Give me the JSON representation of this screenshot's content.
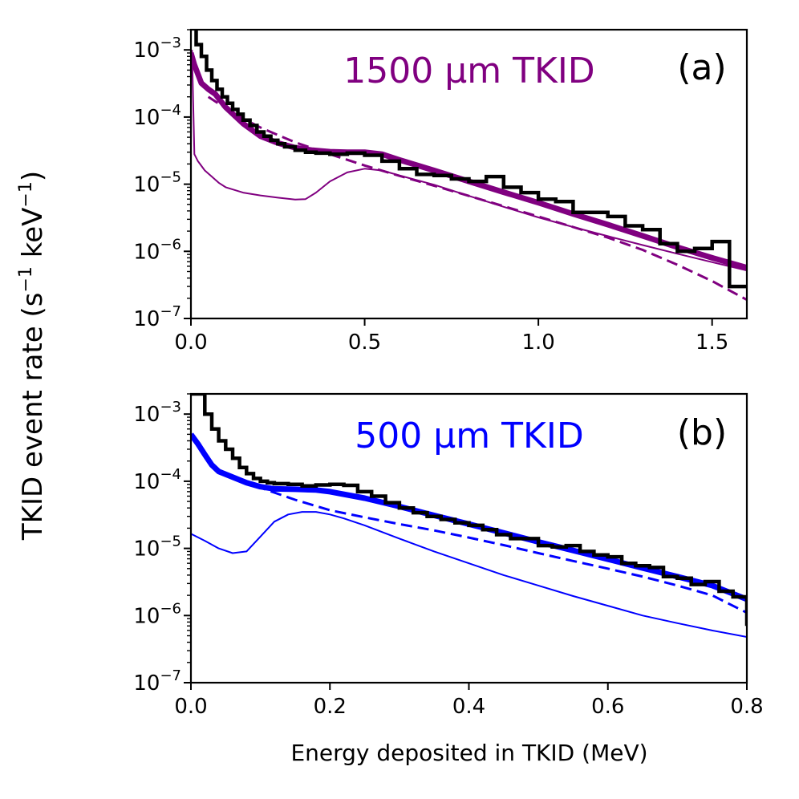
{
  "figure": {
    "ylabel_main": "TKID event rate (s",
    "ylabel_sup1": "−1",
    "ylabel_mid": " keV",
    "ylabel_sup2": "−1",
    "ylabel_end": ")",
    "xlabel": "Energy deposited in TKID (MeV)"
  },
  "chart_data": [
    {
      "type": "line",
      "panel_label": "(a)",
      "title": "1500 µm TKID",
      "title_color": "#800080",
      "line_color": "#800080",
      "xlabel": "",
      "ylabel": "TKID event rate (s⁻¹ keV⁻¹)",
      "xlim": [
        0,
        1.6
      ],
      "ylim": [
        1e-07,
        0.002
      ],
      "yscale": "log",
      "grid": false,
      "xticks": [
        0.0,
        0.5,
        1.0,
        1.5
      ],
      "xtick_labels": [
        "0.0",
        "0.5",
        "1.0",
        "1.5"
      ],
      "yticks": [
        {
          "value": 1e-07,
          "base": "10",
          "exp": "−7"
        },
        {
          "value": 1e-06,
          "base": "10",
          "exp": "−6"
        },
        {
          "value": 1e-05,
          "base": "10",
          "exp": "−5"
        },
        {
          "value": 0.0001,
          "base": "10",
          "exp": "−4"
        },
        {
          "value": 0.001,
          "base": "10",
          "exp": "−3"
        }
      ],
      "series": [
        {
          "style": "thick",
          "x": [
            0.0,
            0.01,
            0.03,
            0.05,
            0.07,
            0.1,
            0.15,
            0.2,
            0.25,
            0.3,
            0.35,
            0.4,
            0.45,
            0.5,
            0.55,
            0.6,
            0.7,
            0.8,
            0.9,
            1.0,
            1.1,
            1.2,
            1.3,
            1.4,
            1.5,
            1.6
          ],
          "y": [
            0.0009,
            0.0006,
            0.00032,
            0.00026,
            0.00022,
            0.00014,
            8e-05,
            5.2e-05,
            4.1e-05,
            3.5e-05,
            3.2e-05,
            3.05e-05,
            3e-05,
            3e-05,
            2.8e-05,
            2.3e-05,
            1.6e-05,
            1.1e-05,
            7.6e-06,
            5.3e-06,
            3.6e-06,
            2.5e-06,
            1.7e-06,
            1.15e-06,
            8e-07,
            5.7e-07
          ]
        },
        {
          "style": "dashed",
          "x": [
            0.05,
            0.1,
            0.15,
            0.2,
            0.25,
            0.3,
            0.4,
            0.5,
            0.6,
            0.7,
            0.8,
            0.9,
            1.0,
            1.1,
            1.2,
            1.3,
            1.4,
            1.5,
            1.6
          ],
          "y": [
            0.0002,
            0.000135,
            9.5e-05,
            7e-05,
            5.4e-05,
            4.2e-05,
            2.8e-05,
            1.9e-05,
            1.33e-05,
            9.5e-06,
            6.7e-06,
            4.7e-06,
            3.3e-06,
            2.3e-06,
            1.6e-06,
            1.05e-06,
            6.3e-07,
            3.6e-07,
            1.9e-07
          ]
        },
        {
          "style": "thin",
          "x": [
            0.003,
            0.01,
            0.02,
            0.04,
            0.06,
            0.08,
            0.1,
            0.15,
            0.2,
            0.25,
            0.3,
            0.33,
            0.36,
            0.4,
            0.45,
            0.5,
            0.55,
            0.6,
            0.7,
            0.8,
            0.9,
            1.0,
            1.1,
            1.2,
            1.3,
            1.4,
            1.5,
            1.6
          ],
          "y": [
            0.001,
            2.8e-05,
            2.2e-05,
            1.6e-05,
            1.3e-05,
            1.05e-05,
            9e-06,
            7.5e-06,
            6.8e-06,
            6.3e-06,
            5.9e-06,
            6e-06,
            7.5e-06,
            1.1e-05,
            1.5e-05,
            1.7e-05,
            1.6e-05,
            1.35e-05,
            9.8e-06,
            6.7e-06,
            4.6e-06,
            3.2e-06,
            2.3e-06,
            1.68e-06,
            1.24e-06,
            9.2e-07,
            6.9e-07,
            5.2e-07
          ]
        },
        {
          "style": "step",
          "x": [
            0.0,
            0.015,
            0.03,
            0.045,
            0.06,
            0.075,
            0.09,
            0.105,
            0.12,
            0.135,
            0.15,
            0.17,
            0.19,
            0.21,
            0.23,
            0.25,
            0.27,
            0.3,
            0.33,
            0.36,
            0.4,
            0.45,
            0.5,
            0.55,
            0.6,
            0.65,
            0.7,
            0.75,
            0.8,
            0.85,
            0.9,
            0.95,
            1.0,
            1.05,
            1.1,
            1.15,
            1.2,
            1.25,
            1.3,
            1.35,
            1.4,
            1.45,
            1.5,
            1.55,
            1.6
          ],
          "y": [
            0.0021,
            0.0012,
            0.0008,
            0.0005,
            0.00035,
            0.00026,
            0.0002,
            0.00016,
            0.00013,
            0.00011,
            9e-05,
            7.5e-05,
            6e-05,
            5.2e-05,
            4.5e-05,
            4e-05,
            3.6e-05,
            3.2e-05,
            3e-05,
            2.9e-05,
            2.8e-05,
            2.9e-05,
            2.7e-05,
            2.2e-05,
            1.7e-05,
            1.4e-05,
            1.35e-05,
            1.2e-05,
            1.1e-05,
            1.3e-05,
            9e-06,
            7.5e-06,
            6e-06,
            5.5e-06,
            3.8e-06,
            3.8e-06,
            3.3e-06,
            2.4e-06,
            2.1e-06,
            1.3e-06,
            1e-06,
            1.1e-06,
            1.4e-06,
            3e-07,
            3e-07
          ]
        }
      ]
    },
    {
      "type": "line",
      "panel_label": "(b)",
      "title": "500 µm TKID",
      "title_color": "#0000ff",
      "line_color": "#0000ff",
      "xlabel": "Energy deposited in TKID (MeV)",
      "ylabel": "TKID event rate (s⁻¹ keV⁻¹)",
      "xlim": [
        0,
        0.8
      ],
      "ylim": [
        1e-07,
        0.002
      ],
      "yscale": "log",
      "grid": false,
      "xticks": [
        0.0,
        0.2,
        0.4,
        0.6,
        0.8
      ],
      "xtick_labels": [
        "0.0",
        "0.2",
        "0.4",
        "0.6",
        "0.8"
      ],
      "yticks": [
        {
          "value": 1e-07,
          "base": "10",
          "exp": "−7"
        },
        {
          "value": 1e-06,
          "base": "10",
          "exp": "−6"
        },
        {
          "value": 1e-05,
          "base": "10",
          "exp": "−5"
        },
        {
          "value": 0.0001,
          "base": "10",
          "exp": "−4"
        },
        {
          "value": 0.001,
          "base": "10",
          "exp": "−3"
        }
      ],
      "series": [
        {
          "style": "thick",
          "x": [
            0.0,
            0.01,
            0.02,
            0.03,
            0.04,
            0.06,
            0.08,
            0.1,
            0.12,
            0.15,
            0.18,
            0.2,
            0.25,
            0.3,
            0.35,
            0.4,
            0.45,
            0.5,
            0.55,
            0.6,
            0.65,
            0.7,
            0.75,
            0.8
          ],
          "y": [
            0.0005,
            0.00036,
            0.00025,
            0.000175,
            0.00014,
            0.000115,
            9.5e-05,
            8.3e-05,
            7.7e-05,
            7.6e-05,
            7.4e-05,
            7e-05,
            5.6e-05,
            4.2e-05,
            3.1e-05,
            2.3e-05,
            1.7e-05,
            1.25e-05,
            9.3e-06,
            6.9e-06,
            5.1e-06,
            3.8e-06,
            2.8e-06,
            1.75e-06
          ]
        },
        {
          "style": "dashed",
          "x": [
            0.07,
            0.1,
            0.15,
            0.2,
            0.25,
            0.3,
            0.35,
            0.4,
            0.45,
            0.5,
            0.55,
            0.6,
            0.65,
            0.7,
            0.75,
            0.8
          ],
          "y": [
            0.00011,
            8e-05,
            5.3e-05,
            3.7e-05,
            2.9e-05,
            2.3e-05,
            1.85e-05,
            1.45e-05,
            1.12e-05,
            8.5e-06,
            6.5e-06,
            5e-06,
            3.8e-06,
            2.8e-06,
            2e-06,
            1.1e-06
          ]
        },
        {
          "style": "thin",
          "x": [
            0.0,
            0.02,
            0.04,
            0.06,
            0.08,
            0.1,
            0.12,
            0.14,
            0.16,
            0.18,
            0.2,
            0.22,
            0.25,
            0.3,
            0.35,
            0.4,
            0.45,
            0.5,
            0.55,
            0.6,
            0.65,
            0.7,
            0.75,
            0.8
          ],
          "y": [
            1.65e-05,
            1.3e-05,
            1e-05,
            8.5e-06,
            9e-06,
            1.5e-05,
            2.5e-05,
            3.2e-05,
            3.5e-05,
            3.5e-05,
            3.2e-05,
            2.8e-05,
            2.2e-05,
            1.4e-05,
            9e-06,
            6e-06,
            4e-06,
            2.8e-06,
            1.95e-06,
            1.4e-06,
            1e-06,
            7.7e-07,
            6e-07,
            4.8e-07
          ]
        },
        {
          "style": "step",
          "x": [
            0.0,
            0.02,
            0.03,
            0.04,
            0.05,
            0.06,
            0.07,
            0.08,
            0.09,
            0.1,
            0.11,
            0.12,
            0.14,
            0.16,
            0.18,
            0.2,
            0.22,
            0.24,
            0.26,
            0.28,
            0.3,
            0.32,
            0.34,
            0.36,
            0.38,
            0.4,
            0.42,
            0.44,
            0.46,
            0.48,
            0.5,
            0.52,
            0.54,
            0.56,
            0.58,
            0.6,
            0.62,
            0.64,
            0.66,
            0.68,
            0.7,
            0.72,
            0.74,
            0.76,
            0.78,
            0.8
          ],
          "y": [
            0.002,
            0.001,
            0.0006,
            0.0004,
            0.0003,
            0.00022,
            0.00016,
            0.00013,
            0.00011,
            0.0001,
            9.5e-05,
            9.2e-05,
            9e-05,
            8.5e-05,
            8.8e-05,
            9e-05,
            8.7e-05,
            7e-05,
            6e-05,
            4.8e-05,
            4e-05,
            3.4e-05,
            3e-05,
            2.7e-05,
            2.4e-05,
            2.2e-05,
            1.9e-05,
            1.6e-05,
            1.4e-05,
            1.4e-05,
            1.1e-05,
            1.05e-05,
            1.1e-05,
            9e-06,
            8e-06,
            7.5e-06,
            6e-06,
            5.5e-06,
            5.2e-06,
            3.8e-06,
            3.6e-06,
            2.9e-06,
            3.2e-06,
            2.3e-06,
            1.9e-06,
            7e-07
          ]
        }
      ]
    }
  ]
}
